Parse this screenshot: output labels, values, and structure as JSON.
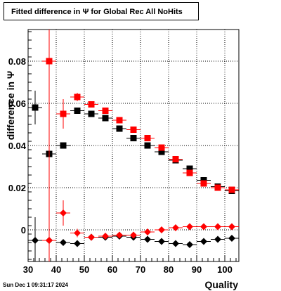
{
  "header": {
    "title": "Fitted difference in  Ψ  for Global Rec All NoHits"
  },
  "footer": {
    "timestamp": "Sun Dec  1 09:31:17 2024"
  },
  "chart_data": {
    "type": "scatter",
    "title": "Fitted difference in  Ψ  for Global Rec All NoHits",
    "xlabel": "Quality",
    "ylabel": "difference in  Ψ",
    "xlim": [
      30,
      105
    ],
    "ylim": [
      -0.015,
      0.095
    ],
    "grid": true,
    "x_ticks": [
      30,
      40,
      50,
      60,
      70,
      80,
      90,
      100
    ],
    "y_ticks": [
      0,
      0.02,
      0.04,
      0.06,
      0.08
    ],
    "y_tick_labels": [
      "0",
      "0.02",
      "0.04",
      "0.06",
      "0.08"
    ],
    "series": [
      {
        "marker": "square",
        "color": "#000000",
        "points": [
          {
            "x": 32.5,
            "y": 0.058,
            "err": 0.008
          },
          {
            "x": 37.5,
            "y": 0.036,
            "err": 0.005
          },
          {
            "x": 42.5,
            "y": 0.04,
            "err": 0.001
          },
          {
            "x": 47.5,
            "y": 0.0565,
            "err": 0.001
          },
          {
            "x": 52.5,
            "y": 0.055,
            "err": 0.001
          },
          {
            "x": 57.5,
            "y": 0.053,
            "err": 0.001
          },
          {
            "x": 62.5,
            "y": 0.048,
            "err": 0.001
          },
          {
            "x": 67.5,
            "y": 0.0435,
            "err": 0.001
          },
          {
            "x": 72.5,
            "y": 0.04,
            "err": 0.001
          },
          {
            "x": 77.5,
            "y": 0.037,
            "err": 0.001
          },
          {
            "x": 82.5,
            "y": 0.033,
            "err": 0.001
          },
          {
            "x": 87.5,
            "y": 0.029,
            "err": 0.001
          },
          {
            "x": 92.5,
            "y": 0.0235,
            "err": 0.001
          },
          {
            "x": 97.5,
            "y": 0.0205,
            "err": 0.001
          },
          {
            "x": 102.5,
            "y": 0.0185,
            "err": 0.001
          }
        ]
      },
      {
        "marker": "square",
        "color": "#ff0000",
        "points": [
          {
            "x": 37.5,
            "y": 0.08,
            "err": 0.095
          },
          {
            "x": 42.5,
            "y": 0.055,
            "err": 0.007
          },
          {
            "x": 47.5,
            "y": 0.063,
            "err": 0.002
          },
          {
            "x": 52.5,
            "y": 0.0595,
            "err": 0.001
          },
          {
            "x": 57.5,
            "y": 0.0565,
            "err": 0.001
          },
          {
            "x": 62.5,
            "y": 0.052,
            "err": 0.001
          },
          {
            "x": 67.5,
            "y": 0.0475,
            "err": 0.001
          },
          {
            "x": 72.5,
            "y": 0.0435,
            "err": 0.001
          },
          {
            "x": 77.5,
            "y": 0.039,
            "err": 0.001
          },
          {
            "x": 82.5,
            "y": 0.0335,
            "err": 0.001
          },
          {
            "x": 87.5,
            "y": 0.027,
            "err": 0.001
          },
          {
            "x": 92.5,
            "y": 0.022,
            "err": 0.001
          },
          {
            "x": 97.5,
            "y": 0.02,
            "err": 0.001
          },
          {
            "x": 102.5,
            "y": 0.019,
            "err": 0.001
          }
        ]
      },
      {
        "marker": "diamond",
        "color": "#000000",
        "points": [
          {
            "x": 32.5,
            "y": -0.005,
            "err": 0.011
          },
          {
            "x": 37.5,
            "y": -0.005,
            "err": 0.005
          },
          {
            "x": 42.5,
            "y": -0.006,
            "err": 0.001
          },
          {
            "x": 47.5,
            "y": -0.0065,
            "err": 0.001
          },
          {
            "x": 52.5,
            "y": -0.0035,
            "err": 0.001
          },
          {
            "x": 57.5,
            "y": -0.0035,
            "err": 0.001
          },
          {
            "x": 62.5,
            "y": -0.003,
            "err": 0.001
          },
          {
            "x": 67.5,
            "y": -0.0035,
            "err": 0.001
          },
          {
            "x": 72.5,
            "y": -0.0045,
            "err": 0.001
          },
          {
            "x": 77.5,
            "y": -0.0055,
            "err": 0.001
          },
          {
            "x": 82.5,
            "y": -0.0065,
            "err": 0.001
          },
          {
            "x": 87.5,
            "y": -0.007,
            "err": 0.001
          },
          {
            "x": 92.5,
            "y": -0.0055,
            "err": 0.001
          },
          {
            "x": 97.5,
            "y": -0.0045,
            "err": 0.001
          },
          {
            "x": 102.5,
            "y": -0.004,
            "err": 0.001
          }
        ]
      },
      {
        "marker": "diamond",
        "color": "#ff0000",
        "points": [
          {
            "x": 37.5,
            "y": -0.005,
            "err": 0.02
          },
          {
            "x": 42.5,
            "y": 0.008,
            "err": 0.006
          },
          {
            "x": 47.5,
            "y": -0.0015,
            "err": 0.002
          },
          {
            "x": 52.5,
            "y": -0.0035,
            "err": 0.001
          },
          {
            "x": 57.5,
            "y": -0.003,
            "err": 0.001
          },
          {
            "x": 62.5,
            "y": -0.0025,
            "err": 0.001
          },
          {
            "x": 67.5,
            "y": -0.0025,
            "err": 0.001
          },
          {
            "x": 72.5,
            "y": -0.001,
            "err": 0.001
          },
          {
            "x": 77.5,
            "y": 0.0,
            "err": 0.001
          },
          {
            "x": 82.5,
            "y": 0.001,
            "err": 0.001
          },
          {
            "x": 87.5,
            "y": 0.0015,
            "err": 0.001
          },
          {
            "x": 92.5,
            "y": 0.0015,
            "err": 0.001
          },
          {
            "x": 97.5,
            "y": 0.0015,
            "err": 0.001
          },
          {
            "x": 102.5,
            "y": 0.0015,
            "err": 0.001
          }
        ]
      }
    ]
  }
}
